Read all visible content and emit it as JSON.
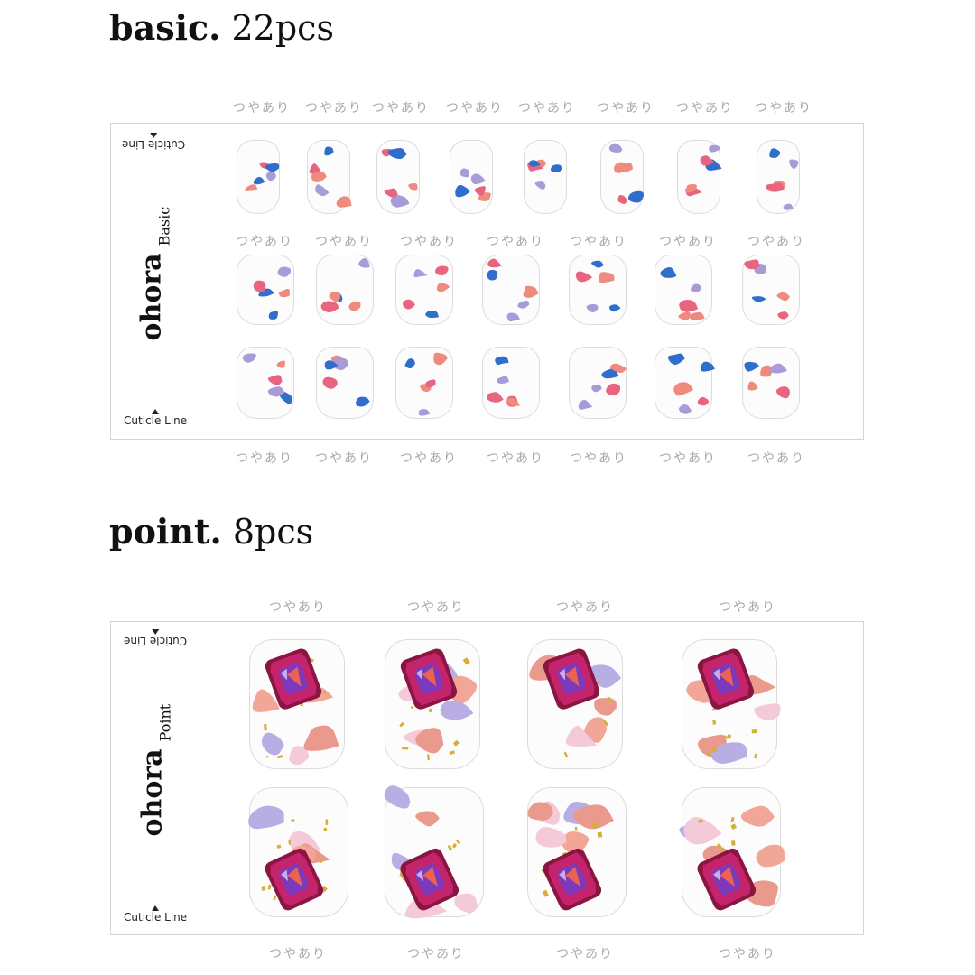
{
  "sections": [
    {
      "title_bold": "basic.",
      "title_count": "22pcs",
      "brand": "ohora",
      "product_line": "Basic",
      "cuticle_label": "Cuticle Line",
      "gloss_label": "つやあり",
      "rows_nail_count": [
        8,
        7,
        7
      ]
    },
    {
      "title_bold": "point.",
      "title_count": "8pcs",
      "brand": "ohora",
      "product_line": "Point",
      "cuticle_label": "Cuticle Line",
      "gloss_label": "つやあり",
      "rows_nail_count": [
        4,
        4
      ]
    }
  ],
  "colors": {
    "blue": "#2f6fcb",
    "coral": "#ee8b7e",
    "pink": "#e7657f",
    "lavender": "#a99bd8",
    "gold": "#d4af37",
    "gem": "#c4246b"
  }
}
